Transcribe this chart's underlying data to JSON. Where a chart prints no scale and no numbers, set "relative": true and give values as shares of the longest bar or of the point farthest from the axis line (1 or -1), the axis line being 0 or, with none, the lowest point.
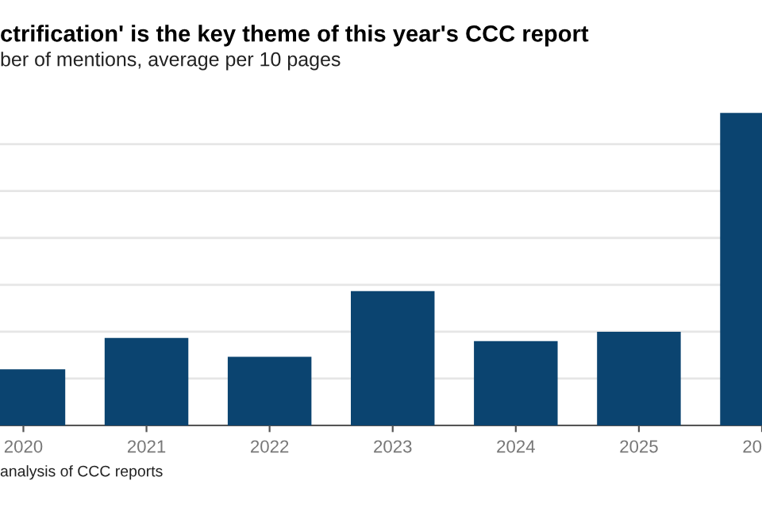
{
  "chart_data": {
    "type": "bar",
    "title": "ctrification' is the key theme of this year's CCC report",
    "subtitle": "ber of mentions, average per 10 pages",
    "categories": [
      "2020",
      "2021",
      "2022",
      "2023",
      "2024",
      "2025",
      "20"
    ],
    "values": [
      0.18,
      0.28,
      0.22,
      0.43,
      0.27,
      0.3,
      1
    ],
    "color": "#0b4470",
    "relative": true,
    "grid": "y",
    "annotations": [
      "analysis of CCC reports"
    ]
  }
}
